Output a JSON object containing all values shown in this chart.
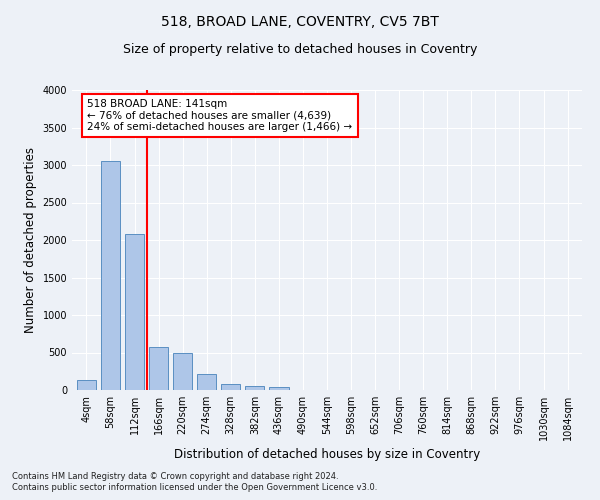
{
  "title": "518, BROAD LANE, COVENTRY, CV5 7BT",
  "subtitle": "Size of property relative to detached houses in Coventry",
  "xlabel": "Distribution of detached houses by size in Coventry",
  "ylabel": "Number of detached properties",
  "footnote1": "Contains HM Land Registry data © Crown copyright and database right 2024.",
  "footnote2": "Contains public sector information licensed under the Open Government Licence v3.0.",
  "bar_labels": [
    "4sqm",
    "58sqm",
    "112sqm",
    "166sqm",
    "220sqm",
    "274sqm",
    "328sqm",
    "382sqm",
    "436sqm",
    "490sqm",
    "544sqm",
    "598sqm",
    "652sqm",
    "706sqm",
    "760sqm",
    "814sqm",
    "868sqm",
    "922sqm",
    "976sqm",
    "1030sqm",
    "1084sqm"
  ],
  "bar_values": [
    130,
    3060,
    2080,
    570,
    500,
    215,
    75,
    55,
    40,
    0,
    0,
    0,
    0,
    0,
    0,
    0,
    0,
    0,
    0,
    0,
    0
  ],
  "bar_color": "#aec6e8",
  "bar_edge_color": "#5a8fc2",
  "vline_color": "red",
  "annotation_text": "518 BROAD LANE: 141sqm\n← 76% of detached houses are smaller (4,639)\n24% of semi-detached houses are larger (1,466) →",
  "annotation_box_color": "white",
  "annotation_box_edge": "red",
  "ylim": [
    0,
    4000
  ],
  "yticks": [
    0,
    500,
    1000,
    1500,
    2000,
    2500,
    3000,
    3500,
    4000
  ],
  "bg_color": "#edf1f7",
  "plot_bg_color": "#edf1f7",
  "grid_color": "white",
  "title_fontsize": 10,
  "subtitle_fontsize": 9,
  "axis_label_fontsize": 8.5,
  "tick_fontsize": 7
}
